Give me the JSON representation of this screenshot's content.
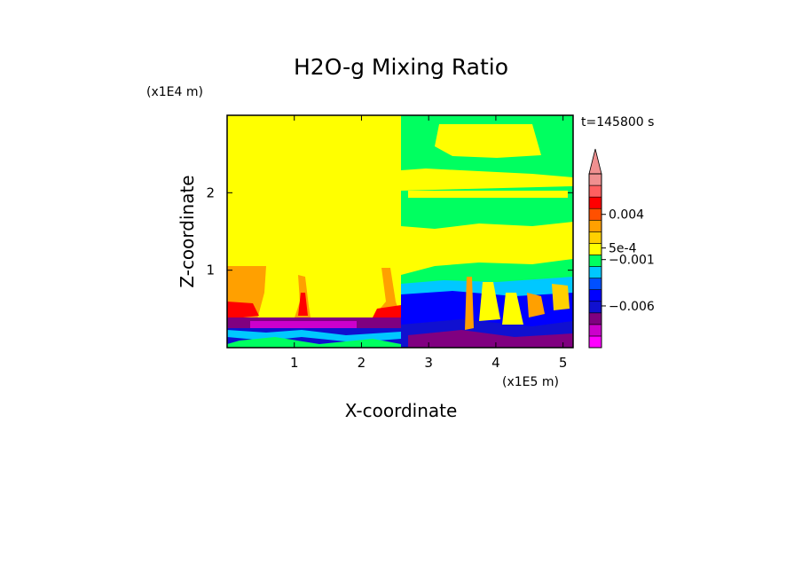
{
  "chart_data": {
    "type": "heatmap",
    "title": "H2O-g Mixing Ratio",
    "xlabel": "X-coordinate",
    "ylabel": "Z-coordinate",
    "x_scale_label": "(x1E5 m)",
    "y_scale_label": "(x1E4 m)",
    "time_label": "t=145800 s",
    "xlim": [
      0,
      5.15
    ],
    "ylim": [
      0,
      3.0
    ],
    "x_ticks": [
      {
        "value": 1,
        "label": "1"
      },
      {
        "value": 2,
        "label": "2"
      },
      {
        "value": 3,
        "label": "3"
      },
      {
        "value": 4,
        "label": "4"
      },
      {
        "value": 5,
        "label": "5"
      }
    ],
    "y_ticks": [
      {
        "value": 1,
        "label": "1"
      },
      {
        "value": 2,
        "label": "2"
      }
    ],
    "colorbar": {
      "levels": [
        "#ff00ff",
        "#cc00cc",
        "#800080",
        "#1010d0",
        "#0000ff",
        "#0050ff",
        "#00c8ff",
        "#00ff60",
        "#ffff00",
        "#ffd000",
        "#ffa000",
        "#ff5000",
        "#ff0000",
        "#ff6060",
        "#f09090"
      ],
      "extend": "max",
      "labels": [
        {
          "text": "0.004",
          "level": 11.5
        },
        {
          "text": "5e-4",
          "level": 8.6
        },
        {
          "text": "−0.001",
          "level": 7.6
        },
        {
          "text": "−0.006",
          "level": 3.6
        }
      ]
    }
  }
}
